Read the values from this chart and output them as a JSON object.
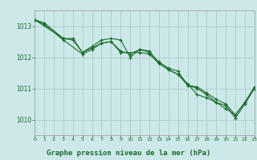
{
  "title": "Graphe pression niveau de la mer (hPa)",
  "background_color": "#cce8e8",
  "grid_color": "#aacccc",
  "line_color": "#1a6b2a",
  "xlim": [
    0,
    23
  ],
  "ylim": [
    1009.5,
    1013.5
  ],
  "yticks": [
    1010,
    1011,
    1012,
    1013
  ],
  "xticks": [
    0,
    1,
    2,
    3,
    4,
    5,
    6,
    7,
    8,
    9,
    10,
    11,
    12,
    13,
    14,
    15,
    16,
    17,
    18,
    19,
    20,
    21,
    22,
    23
  ],
  "series1_x": [
    0,
    1,
    3,
    4,
    5,
    6,
    7,
    8,
    9,
    10,
    11,
    12,
    13,
    14,
    15,
    16,
    17,
    18,
    19,
    20,
    21,
    22,
    23
  ],
  "series1_y": [
    1013.2,
    1013.1,
    1012.6,
    1012.6,
    1012.15,
    1012.3,
    1012.45,
    1012.5,
    1012.2,
    1012.1,
    1012.25,
    1012.15,
    1011.85,
    1011.65,
    1011.55,
    1011.1,
    1011.05,
    1010.85,
    1010.65,
    1010.5,
    1010.15,
    1010.55,
    1011.0
  ],
  "series2_x": [
    0,
    3,
    4,
    5,
    6,
    7,
    8,
    9,
    10,
    11,
    12,
    13,
    14,
    15,
    16,
    17,
    18,
    19,
    20,
    21,
    22,
    23
  ],
  "series2_y": [
    1013.2,
    1012.6,
    1012.55,
    1012.15,
    1012.35,
    1012.55,
    1012.6,
    1012.55,
    1012.0,
    1012.25,
    1012.2,
    1011.8,
    1011.6,
    1011.45,
    1011.15,
    1010.8,
    1010.7,
    1010.55,
    1010.35,
    1010.15,
    1010.55,
    1011.05
  ],
  "series3_x": [
    0,
    1,
    3,
    5,
    6,
    7,
    8,
    9,
    11,
    12,
    13,
    14,
    15,
    16,
    17,
    18,
    19,
    20,
    21,
    22,
    23
  ],
  "series3_y": [
    1013.2,
    1013.05,
    1012.55,
    1012.1,
    1012.25,
    1012.45,
    1012.5,
    1012.15,
    1012.15,
    1012.1,
    1011.8,
    1011.6,
    1011.45,
    1011.1,
    1011.0,
    1010.8,
    1010.55,
    1010.45,
    1010.05,
    1010.5,
    1011.0
  ],
  "ylabel_fontsize": 5.5,
  "tick_fontsize": 5.0,
  "title_fontsize": 6.5
}
